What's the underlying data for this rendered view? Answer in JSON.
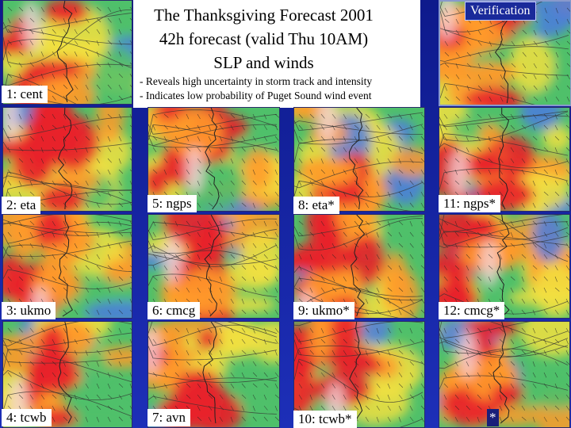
{
  "title_lines": [
    "The Thanksgiving Forecast 2001",
    "42h forecast (valid Thu 10AM)",
    "SLP and winds"
  ],
  "notes": [
    "- Reveals high uncertainty in storm track and intensity",
    "- Indicates low probability of Puget Sound wind event"
  ],
  "verification_label": "Verification",
  "panels": [
    {
      "label": "1: cent"
    },
    {
      "label": "2: eta"
    },
    {
      "label": "3: ukmo"
    },
    {
      "label": "4: tcwb"
    },
    {
      "label": "5: ngps"
    },
    {
      "label": "6: cmcg"
    },
    {
      "label": "7: avn"
    },
    {
      "label": "8: eta*"
    },
    {
      "label": "9: ukmo*"
    },
    {
      "label": "10: tcwb*"
    },
    {
      "label": "11: ngps*"
    },
    {
      "label": "12: cmcg*"
    },
    {
      "label": "*"
    }
  ],
  "colors": {
    "background": "#1d2fb8",
    "strong_wind": "#e8202a",
    "moderate_wind": "#ff9a2a",
    "light_wind": "#f2e040",
    "calm": "#4fc06a",
    "cold": "#4a7be0"
  }
}
